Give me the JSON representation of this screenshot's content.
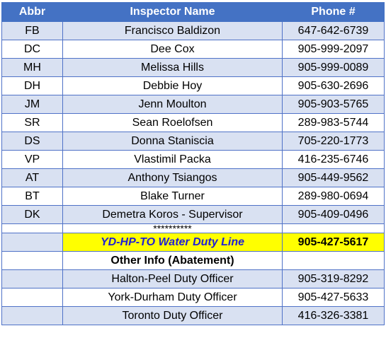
{
  "headers": {
    "abbr": "Abbr",
    "name": "Inspector Name",
    "phone": "Phone #"
  },
  "inspectors": [
    {
      "abbr": "FB",
      "name": "Francisco Baldizon",
      "phone": "647-642-6739"
    },
    {
      "abbr": "DC",
      "name": "Dee Cox",
      "phone": "905-999-2097"
    },
    {
      "abbr": "MH",
      "name": "Melissa Hills",
      "phone": "905-999-0089"
    },
    {
      "abbr": "DH",
      "name": "Debbie Hoy",
      "phone": "905-630-2696"
    },
    {
      "abbr": "JM",
      "name": "Jenn Moulton",
      "phone": "905-903-5765"
    },
    {
      "abbr": "SR",
      "name": "Sean Roelofsen",
      "phone": "289-983-5744"
    },
    {
      "abbr": "DS",
      "name": "Donna Staniscia",
      "phone": "705-220-1773"
    },
    {
      "abbr": "VP",
      "name": "Vlastimil Packa",
      "phone": "416-235-6746"
    },
    {
      "abbr": "AT",
      "name": "Anthony Tsiangos",
      "phone": "905-449-9562"
    },
    {
      "abbr": "BT",
      "name": "Blake Turner",
      "phone": "289-980-0694"
    },
    {
      "abbr": "DK",
      "name": "Demetra Koros - Supervisor",
      "phone": "905-409-0496"
    }
  ],
  "separator": "**********",
  "duty_line": {
    "name": "YD-HP-TO Water Duty Line",
    "phone": "905-427-5617"
  },
  "other_info_heading": "Other Info (Abatement)",
  "other_info": [
    {
      "name": "Halton-Peel Duty Officer",
      "phone": "905-319-8292"
    },
    {
      "name": "York-Durham Duty Officer",
      "phone": "905-427-5633"
    },
    {
      "name": "Toronto Duty Officer",
      "phone": "416-326-3381"
    }
  ],
  "colors": {
    "header_bg": "#4472c4",
    "band_bg": "#d9e1f2",
    "highlight": "#ffff00",
    "duty_text": "#1f1fd6"
  }
}
